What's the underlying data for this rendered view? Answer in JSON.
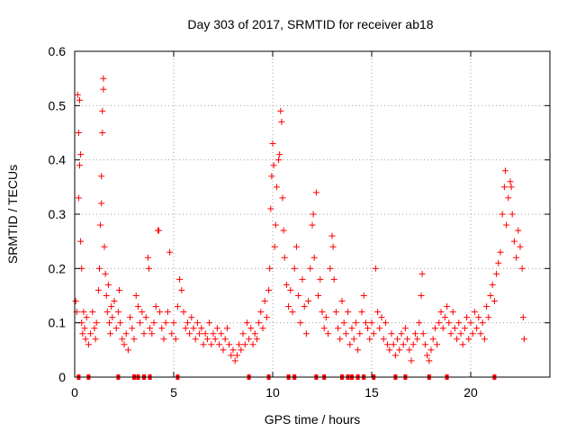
{
  "chart_data": {
    "type": "scatter",
    "title": "Day 303 of 2017, SRMTID for receiver ab18",
    "xlabel": "GPS time / hours",
    "ylabel": "SRMTID / TECUs",
    "xlim": [
      0,
      24
    ],
    "ylim": [
      0,
      0.6
    ],
    "xticks": [
      0,
      5,
      10,
      15,
      20
    ],
    "yticks": [
      0,
      0.1,
      0.2,
      0.3,
      0.4,
      0.5,
      0.6
    ],
    "xtick_labels": [
      "0",
      "5",
      "10",
      "15",
      "20"
    ],
    "ytick_labels": [
      "0",
      "0.1",
      "0.2",
      "0.3",
      "0.4",
      "0.5",
      "0.6"
    ],
    "grid": true,
    "marker": "+",
    "color": "#ff0000",
    "series": [
      {
        "name": "SRMTID",
        "points": [
          [
            0.05,
            0.14
          ],
          [
            0.1,
            0.12
          ],
          [
            0.15,
            0.52
          ],
          [
            0.2,
            0.45
          ],
          [
            0.2,
            0.33
          ],
          [
            0.25,
            0.39
          ],
          [
            0.25,
            0.51
          ],
          [
            0.3,
            0.41
          ],
          [
            0.3,
            0.25
          ],
          [
            0.35,
            0.2
          ],
          [
            0.35,
            0.1
          ],
          [
            0.4,
            0.08
          ],
          [
            0.45,
            0.12
          ],
          [
            0.5,
            0.09
          ],
          [
            0.55,
            0.07
          ],
          [
            0.6,
            0.11
          ],
          [
            0.7,
            0.06
          ],
          [
            0.8,
            0.08
          ],
          [
            0.9,
            0.12
          ],
          [
            1.0,
            0.09
          ],
          [
            1.05,
            0.07
          ],
          [
            1.1,
            0.1
          ],
          [
            1.2,
            0.16
          ],
          [
            1.25,
            0.2
          ],
          [
            1.3,
            0.28
          ],
          [
            1.35,
            0.37
          ],
          [
            1.35,
            0.32
          ],
          [
            1.4,
            0.45
          ],
          [
            1.4,
            0.49
          ],
          [
            1.45,
            0.55
          ],
          [
            1.45,
            0.53
          ],
          [
            1.5,
            0.24
          ],
          [
            1.55,
            0.19
          ],
          [
            1.6,
            0.15
          ],
          [
            1.65,
            0.12
          ],
          [
            1.7,
            0.17
          ],
          [
            1.75,
            0.1
          ],
          [
            1.8,
            0.08
          ],
          [
            1.85,
            0.13
          ],
          [
            1.9,
            0.11
          ],
          [
            2.0,
            0.14
          ],
          [
            2.1,
            0.09
          ],
          [
            2.2,
            0.12
          ],
          [
            2.25,
            0.16
          ],
          [
            2.3,
            0.1
          ],
          [
            2.4,
            0.07
          ],
          [
            2.5,
            0.06
          ],
          [
            2.6,
            0.08
          ],
          [
            2.7,
            0.05
          ],
          [
            2.8,
            0.11
          ],
          [
            2.9,
            0.09
          ],
          [
            3.0,
            0.07
          ],
          [
            3.1,
            0.15
          ],
          [
            3.2,
            0.13
          ],
          [
            3.3,
            0.1
          ],
          [
            3.4,
            0.12
          ],
          [
            3.5,
            0.08
          ],
          [
            3.6,
            0.11
          ],
          [
            3.7,
            0.22
          ],
          [
            3.75,
            0.2
          ],
          [
            3.8,
            0.09
          ],
          [
            3.9,
            0.08
          ],
          [
            4.0,
            0.1
          ],
          [
            4.1,
            0.13
          ],
          [
            4.2,
            0.27
          ],
          [
            4.25,
            0.27
          ],
          [
            4.3,
            0.12
          ],
          [
            4.4,
            0.09
          ],
          [
            4.5,
            0.07
          ],
          [
            4.6,
            0.1
          ],
          [
            4.7,
            0.12
          ],
          [
            4.8,
            0.23
          ],
          [
            4.9,
            0.08
          ],
          [
            5.0,
            0.1
          ],
          [
            5.1,
            0.07
          ],
          [
            5.2,
            0.13
          ],
          [
            5.3,
            0.18
          ],
          [
            5.4,
            0.16
          ],
          [
            5.5,
            0.12
          ],
          [
            5.6,
            0.09
          ],
          [
            5.7,
            0.1
          ],
          [
            5.8,
            0.08
          ],
          [
            5.9,
            0.11
          ],
          [
            6.0,
            0.09
          ],
          [
            6.1,
            0.07
          ],
          [
            6.2,
            0.1
          ],
          [
            6.3,
            0.08
          ],
          [
            6.4,
            0.09
          ],
          [
            6.5,
            0.06
          ],
          [
            6.6,
            0.08
          ],
          [
            6.7,
            0.07
          ],
          [
            6.8,
            0.1
          ],
          [
            6.9,
            0.06
          ],
          [
            7.0,
            0.08
          ],
          [
            7.1,
            0.07
          ],
          [
            7.2,
            0.09
          ],
          [
            7.3,
            0.06
          ],
          [
            7.4,
            0.08
          ],
          [
            7.5,
            0.05
          ],
          [
            7.6,
            0.07
          ],
          [
            7.7,
            0.09
          ],
          [
            7.8,
            0.06
          ],
          [
            7.9,
            0.04
          ],
          [
            8.0,
            0.05
          ],
          [
            8.1,
            0.03
          ],
          [
            8.2,
            0.04
          ],
          [
            8.3,
            0.06
          ],
          [
            8.4,
            0.05
          ],
          [
            8.5,
            0.08
          ],
          [
            8.6,
            0.06
          ],
          [
            8.7,
            0.1
          ],
          [
            8.8,
            0.07
          ],
          [
            8.9,
            0.09
          ],
          [
            9.0,
            0.06
          ],
          [
            9.1,
            0.08
          ],
          [
            9.2,
            0.07
          ],
          [
            9.3,
            0.1
          ],
          [
            9.4,
            0.12
          ],
          [
            9.5,
            0.09
          ],
          [
            9.6,
            0.14
          ],
          [
            9.7,
            0.11
          ],
          [
            9.8,
            0.16
          ],
          [
            9.85,
            0.2
          ],
          [
            9.9,
            0.31
          ],
          [
            9.95,
            0.37
          ],
          [
            10.0,
            0.43
          ],
          [
            10.05,
            0.39
          ],
          [
            10.1,
            0.24
          ],
          [
            10.15,
            0.28
          ],
          [
            10.2,
            0.35
          ],
          [
            10.3,
            0.4
          ],
          [
            10.35,
            0.41
          ],
          [
            10.4,
            0.49
          ],
          [
            10.45,
            0.47
          ],
          [
            10.5,
            0.33
          ],
          [
            10.55,
            0.27
          ],
          [
            10.6,
            0.22
          ],
          [
            10.7,
            0.17
          ],
          [
            10.8,
            0.13
          ],
          [
            10.9,
            0.16
          ],
          [
            11.0,
            0.12
          ],
          [
            11.1,
            0.2
          ],
          [
            11.2,
            0.24
          ],
          [
            11.3,
            0.15
          ],
          [
            11.4,
            0.1
          ],
          [
            11.5,
            0.18
          ],
          [
            11.6,
            0.13
          ],
          [
            11.7,
            0.08
          ],
          [
            11.8,
            0.14
          ],
          [
            11.9,
            0.2
          ],
          [
            12.0,
            0.28
          ],
          [
            12.05,
            0.3
          ],
          [
            12.1,
            0.22
          ],
          [
            12.2,
            0.34
          ],
          [
            12.3,
            0.15
          ],
          [
            12.4,
            0.18
          ],
          [
            12.5,
            0.12
          ],
          [
            12.6,
            0.09
          ],
          [
            12.7,
            0.11
          ],
          [
            12.8,
            0.08
          ],
          [
            12.9,
            0.2
          ],
          [
            13.0,
            0.26
          ],
          [
            13.05,
            0.24
          ],
          [
            13.1,
            0.18
          ],
          [
            13.2,
            0.12
          ],
          [
            13.3,
            0.09
          ],
          [
            13.4,
            0.07
          ],
          [
            13.5,
            0.14
          ],
          [
            13.6,
            0.1
          ],
          [
            13.7,
            0.08
          ],
          [
            13.8,
            0.12
          ],
          [
            13.9,
            0.06
          ],
          [
            14.0,
            0.09
          ],
          [
            14.1,
            0.07
          ],
          [
            14.2,
            0.1
          ],
          [
            14.3,
            0.05
          ],
          [
            14.4,
            0.08
          ],
          [
            14.5,
            0.12
          ],
          [
            14.6,
            0.15
          ],
          [
            14.7,
            0.1
          ],
          [
            14.8,
            0.09
          ],
          [
            14.9,
            0.07
          ],
          [
            15.0,
            0.1
          ],
          [
            15.1,
            0.08
          ],
          [
            15.2,
            0.2
          ],
          [
            15.3,
            0.12
          ],
          [
            15.4,
            0.09
          ],
          [
            15.5,
            0.11
          ],
          [
            15.6,
            0.07
          ],
          [
            15.7,
            0.1
          ],
          [
            15.8,
            0.06
          ],
          [
            15.9,
            0.05
          ],
          [
            16.0,
            0.08
          ],
          [
            16.1,
            0.06
          ],
          [
            16.2,
            0.04
          ],
          [
            16.3,
            0.07
          ],
          [
            16.4,
            0.05
          ],
          [
            16.5,
            0.08
          ],
          [
            16.6,
            0.06
          ],
          [
            16.7,
            0.09
          ],
          [
            16.8,
            0.07
          ],
          [
            16.9,
            0.05
          ],
          [
            17.0,
            0.03
          ],
          [
            17.1,
            0.06
          ],
          [
            17.2,
            0.08
          ],
          [
            17.3,
            0.07
          ],
          [
            17.4,
            0.1
          ],
          [
            17.5,
            0.15
          ],
          [
            17.55,
            0.19
          ],
          [
            17.6,
            0.08
          ],
          [
            17.7,
            0.06
          ],
          [
            17.8,
            0.04
          ],
          [
            17.9,
            0.03
          ],
          [
            18.0,
            0.05
          ],
          [
            18.1,
            0.07
          ],
          [
            18.2,
            0.09
          ],
          [
            18.3,
            0.06
          ],
          [
            18.4,
            0.1
          ],
          [
            18.5,
            0.12
          ],
          [
            18.6,
            0.09
          ],
          [
            18.7,
            0.11
          ],
          [
            18.8,
            0.13
          ],
          [
            18.9,
            0.1
          ],
          [
            19.0,
            0.08
          ],
          [
            19.1,
            0.12
          ],
          [
            19.2,
            0.09
          ],
          [
            19.3,
            0.07
          ],
          [
            19.4,
            0.1
          ],
          [
            19.5,
            0.08
          ],
          [
            19.6,
            0.06
          ],
          [
            19.7,
            0.09
          ],
          [
            19.8,
            0.11
          ],
          [
            19.9,
            0.07
          ],
          [
            20.0,
            0.1
          ],
          [
            20.1,
            0.08
          ],
          [
            20.2,
            0.12
          ],
          [
            20.3,
            0.09
          ],
          [
            20.4,
            0.11
          ],
          [
            20.5,
            0.08
          ],
          [
            20.6,
            0.1
          ],
          [
            20.7,
            0.07
          ],
          [
            20.8,
            0.13
          ],
          [
            20.9,
            0.11
          ],
          [
            21.0,
            0.15
          ],
          [
            21.1,
            0.17
          ],
          [
            21.2,
            0.14
          ],
          [
            21.3,
            0.19
          ],
          [
            21.4,
            0.21
          ],
          [
            21.5,
            0.23
          ],
          [
            21.6,
            0.3
          ],
          [
            21.7,
            0.35
          ],
          [
            21.75,
            0.38
          ],
          [
            21.8,
            0.28
          ],
          [
            21.9,
            0.33
          ],
          [
            22.0,
            0.36
          ],
          [
            22.05,
            0.35
          ],
          [
            22.1,
            0.3
          ],
          [
            22.2,
            0.25
          ],
          [
            22.3,
            0.22
          ],
          [
            22.4,
            0.27
          ],
          [
            22.5,
            0.24
          ],
          [
            22.6,
            0.2
          ],
          [
            22.65,
            0.11
          ],
          [
            22.7,
            0.07
          ]
        ]
      }
    ],
    "zero_markers_x": [
      0.2,
      0.7,
      2.2,
      3.0,
      3.2,
      3.5,
      3.8,
      5.2,
      8.8,
      9.8,
      10.8,
      11.1,
      12.2,
      12.6,
      13.5,
      13.8,
      14.0,
      14.3,
      14.6,
      15.1,
      16.2,
      16.7,
      17.9,
      18.8,
      21.2
    ]
  }
}
